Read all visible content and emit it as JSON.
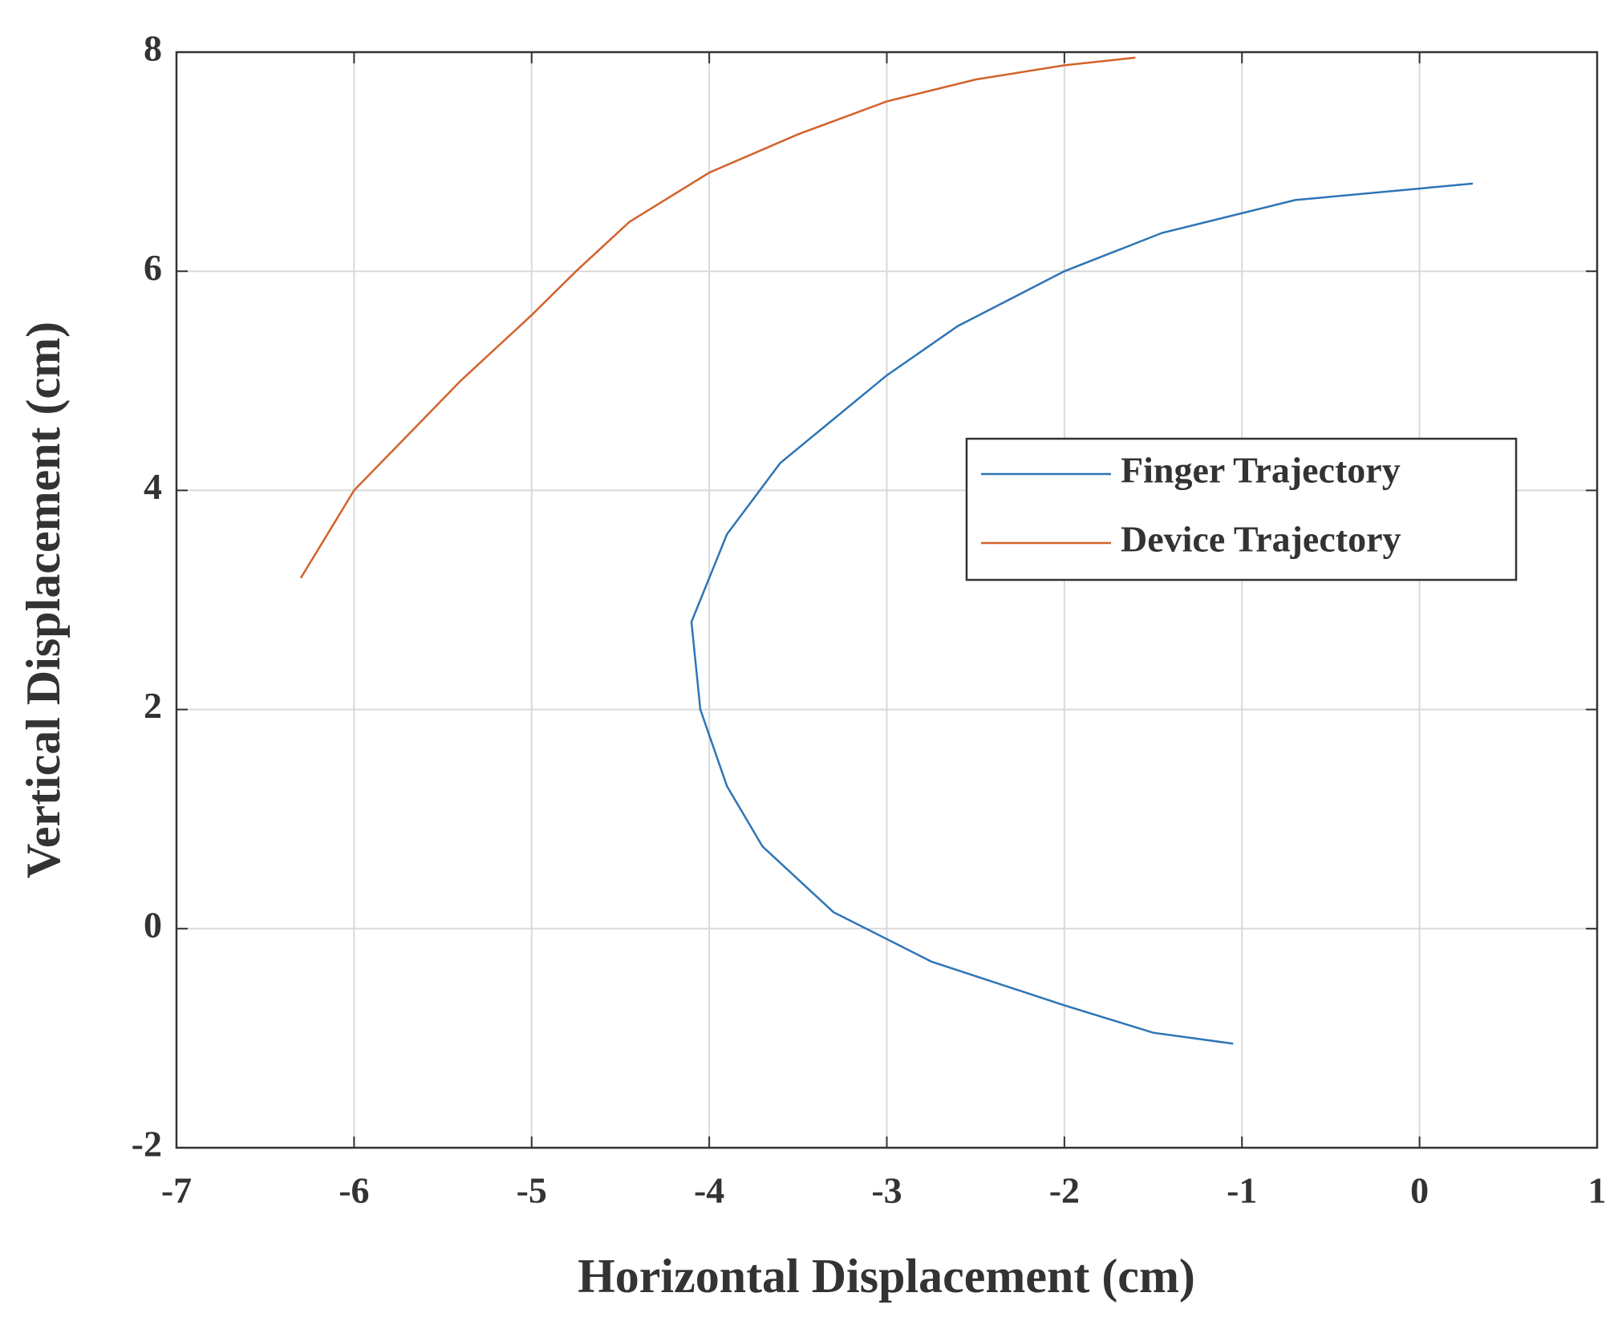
{
  "chart_data": {
    "type": "line",
    "xlabel": "Horizontal Displacement (cm)",
    "ylabel": "Vertical Displacement (cm)",
    "xlim": [
      -7,
      1
    ],
    "ylim": [
      -2,
      8
    ],
    "xticks": [
      -7,
      -6,
      -5,
      -4,
      -3,
      -2,
      -1,
      0,
      1
    ],
    "yticks": [
      -2,
      0,
      2,
      4,
      6,
      8
    ],
    "grid": true,
    "legend": "right",
    "series": [
      {
        "name": "Finger Trajectory",
        "color": "#2e75b6",
        "x": [
          0.3,
          -0.7,
          -1.45,
          -2.0,
          -2.6,
          -3.0,
          -3.3,
          -3.6,
          -3.9,
          -4.1,
          -4.05,
          -3.9,
          -3.7,
          -3.3,
          -2.75,
          -2.0,
          -1.5,
          -1.05
        ],
        "values": [
          6.8,
          6.65,
          6.35,
          6.0,
          5.5,
          5.05,
          4.65,
          4.25,
          3.6,
          2.8,
          2.0,
          1.3,
          0.75,
          0.15,
          -0.3,
          -0.7,
          -0.95,
          -1.05
        ]
      },
      {
        "name": "Device Trajectory",
        "color": "#d3622a",
        "x": [
          -6.3,
          -6.15,
          -6.0,
          -5.7,
          -5.4,
          -5.0,
          -4.75,
          -4.45,
          -4.0,
          -3.5,
          -3.0,
          -2.5,
          -2.0,
          -1.6
        ],
        "values": [
          3.2,
          3.6,
          4.0,
          4.5,
          5.0,
          5.6,
          6.0,
          6.45,
          6.9,
          7.25,
          7.55,
          7.75,
          7.88,
          7.95
        ]
      }
    ]
  }
}
